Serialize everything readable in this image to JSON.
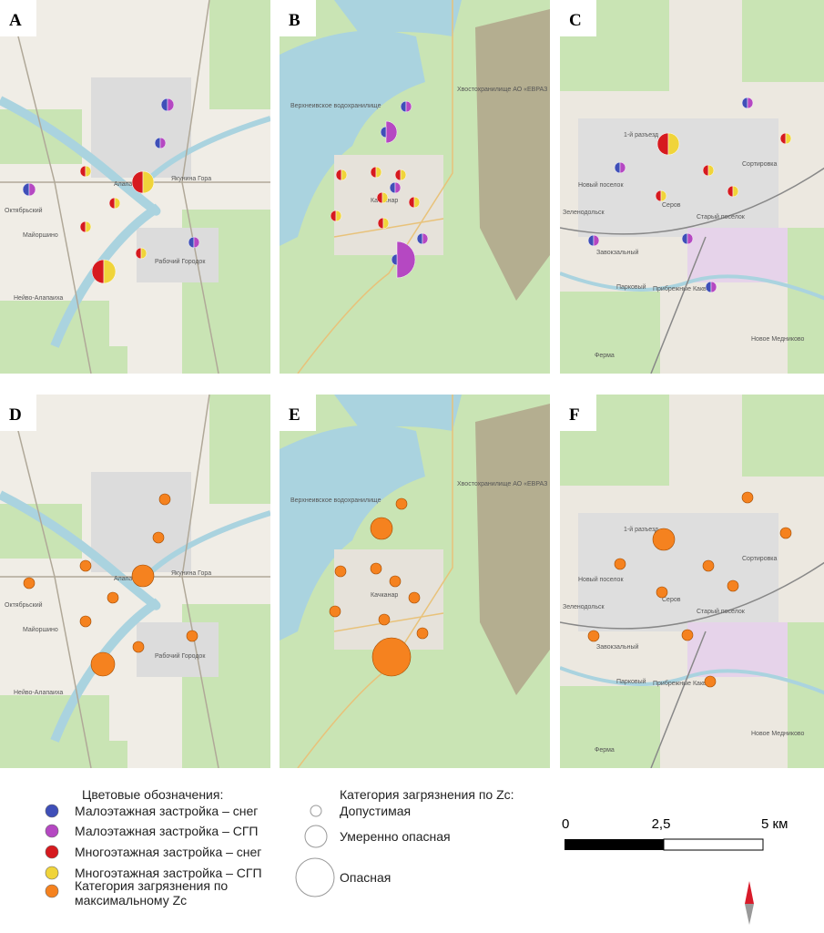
{
  "panels": [
    {
      "label": "A",
      "places": [
        "Октябрьский",
        "Майоршино",
        "Алапаевск",
        "Якунина Гора",
        "Рабочий Городок",
        "Нейво-Алапаиха"
      ]
    },
    {
      "label": "B",
      "places": [
        "Верхнеивское водохранилище",
        "Качканар",
        "Хвостохранилище АО «ЕВРАЗ Качканарский ГОК»"
      ]
    },
    {
      "label": "C",
      "places": [
        "1-й разъезд",
        "Новый поселок",
        "Серов",
        "Сортировка",
        "Старый поселок",
        "Зеленодольск",
        "Завокзальный",
        "Парковый",
        "Прибрежные Каквы",
        "Ферма",
        "Новое Медниково"
      ]
    },
    {
      "label": "D",
      "places": [
        "Октябрьский",
        "Майоршино",
        "Алапаевск",
        "Якунина Гора",
        "Рабочий Городок",
        "Нейво-Алапаиха"
      ]
    },
    {
      "label": "E",
      "places": [
        "Верхнеивское водохранилище",
        "Качканар",
        "Хвостохранилище АО «ЕВРАЗ Качканарский ГОК»"
      ]
    },
    {
      "label": "F",
      "places": [
        "1-й разъезд",
        "Новый поселок",
        "Серов",
        "Сортировка",
        "Старый поселок",
        "Зеленодольск",
        "Завокзальный",
        "Парковый",
        "Прибрежные Каквы",
        "Ферма",
        "Новое Медниково"
      ]
    }
  ],
  "legend": {
    "title": "Цветовые обозначения:",
    "items": [
      "Малоэтажная застройка – снег",
      "Малоэтажная застройка – СГП",
      "Многоэтажная застройка – снег",
      "Многоэтажная застройка – СГП",
      "Категория загрязнения по максимальному Zc"
    ],
    "size_title": "Категория загрязнения по Zc:",
    "sizes": [
      "Допустимая",
      "Умеренно опасная",
      "Опасная"
    ]
  },
  "scale": {
    "labels": [
      "0",
      "2,5",
      "5 км"
    ]
  }
}
